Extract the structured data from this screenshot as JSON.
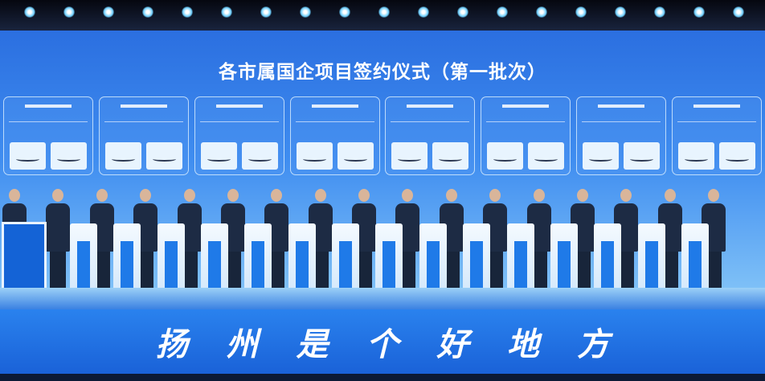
{
  "title": "各市属国企项目签约仪式（第一批次）",
  "banner": {
    "chars": [
      "扬",
      "州",
      "是",
      "个",
      "好",
      "地",
      "方"
    ]
  },
  "colors": {
    "screen": "#3f8df0",
    "banner": "#2a82ee",
    "podium_stripe": "#1f7ae8"
  },
  "signing_panel_count": 8,
  "participant_count": 17
}
